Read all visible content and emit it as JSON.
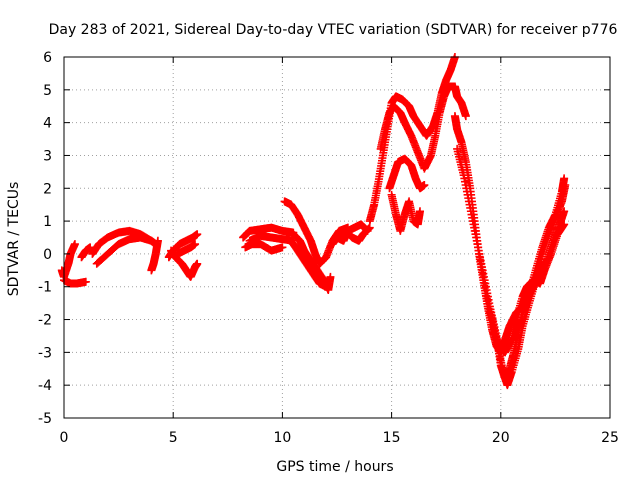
{
  "chart_data": {
    "type": "scatter",
    "title": "Day 283 of 2021, Sidereal Day-to-day VTEC variation (SDTVAR) for receiver p776",
    "xlabel": "GPS time / hours",
    "ylabel": "SDTVAR / TECUs",
    "xlim": [
      0,
      25
    ],
    "ylim": [
      -5,
      6
    ],
    "xticks": [
      0,
      5,
      10,
      15,
      20,
      25
    ],
    "yticks": [
      -5,
      -4,
      -3,
      -2,
      -1,
      0,
      1,
      2,
      3,
      4,
      5,
      6
    ],
    "grid": true,
    "marker": "+",
    "series": [
      {
        "name": "SDTVAR",
        "color": "#ff0000",
        "segments": [
          [
            [
              -0.1,
              -0.5
            ],
            [
              0.0,
              -0.7
            ],
            [
              0.2,
              -0.3
            ],
            [
              0.3,
              0.0
            ],
            [
              0.5,
              0.3
            ]
          ],
          [
            [
              0.0,
              -0.8
            ],
            [
              0.3,
              -0.9
            ],
            [
              0.6,
              -0.9
            ],
            [
              1.0,
              -0.85
            ]
          ],
          [
            [
              0.8,
              -0.1
            ],
            [
              1.0,
              0.1
            ],
            [
              1.2,
              0.2
            ]
          ],
          [
            [
              1.3,
              0.0
            ],
            [
              1.6,
              0.3
            ],
            [
              2.0,
              0.5
            ],
            [
              2.5,
              0.65
            ],
            [
              3.0,
              0.7
            ],
            [
              3.5,
              0.6
            ],
            [
              4.0,
              0.4
            ],
            [
              4.2,
              0.3
            ]
          ],
          [
            [
              1.5,
              -0.3
            ],
            [
              2.0,
              0.0
            ],
            [
              2.5,
              0.3
            ],
            [
              3.0,
              0.45
            ],
            [
              3.5,
              0.5
            ],
            [
              4.0,
              0.4
            ]
          ],
          [
            [
              4.0,
              -0.5
            ],
            [
              4.1,
              -0.3
            ],
            [
              4.2,
              0.0
            ],
            [
              4.3,
              0.4
            ]
          ],
          [
            [
              4.8,
              -0.1
            ],
            [
              5.0,
              0.1
            ],
            [
              5.3,
              0.3
            ],
            [
              5.6,
              0.4
            ],
            [
              5.9,
              0.5
            ],
            [
              6.1,
              0.6
            ]
          ],
          [
            [
              4.9,
              0.1
            ],
            [
              5.1,
              -0.1
            ],
            [
              5.4,
              -0.3
            ],
            [
              5.6,
              -0.5
            ],
            [
              5.8,
              -0.7
            ],
            [
              6.0,
              -0.4
            ],
            [
              6.1,
              -0.3
            ]
          ],
          [
            [
              5.2,
              0.0
            ],
            [
              5.5,
              0.1
            ],
            [
              5.8,
              0.2
            ],
            [
              6.0,
              0.3
            ]
          ],
          [
            [
              8.2,
              0.5
            ],
            [
              8.5,
              0.7
            ],
            [
              9.0,
              0.75
            ],
            [
              9.5,
              0.8
            ],
            [
              10.0,
              0.7
            ],
            [
              10.5,
              0.65
            ]
          ],
          [
            [
              8.3,
              0.2
            ],
            [
              8.6,
              0.3
            ],
            [
              9.0,
              0.3
            ],
            [
              9.5,
              0.1
            ],
            [
              10.0,
              0.2
            ]
          ],
          [
            [
              8.5,
              0.4
            ],
            [
              9.0,
              0.55
            ],
            [
              9.5,
              0.5
            ],
            [
              10.0,
              0.45
            ],
            [
              10.5,
              0.4
            ]
          ],
          [
            [
              10.1,
              1.6
            ],
            [
              10.4,
              1.5
            ],
            [
              10.7,
              1.2
            ],
            [
              11.0,
              0.8
            ],
            [
              11.3,
              0.4
            ],
            [
              11.5,
              0.0
            ],
            [
              11.7,
              -0.3
            ],
            [
              12.0,
              -0.1
            ],
            [
              12.3,
              0.4
            ],
            [
              12.6,
              0.7
            ],
            [
              13.0,
              0.8
            ]
          ],
          [
            [
              10.5,
              0.6
            ],
            [
              10.8,
              0.4
            ],
            [
              11.0,
              0.1
            ],
            [
              11.3,
              -0.2
            ],
            [
              11.6,
              -0.5
            ],
            [
              11.9,
              -0.8
            ],
            [
              12.1,
              -1.1
            ],
            [
              12.2,
              -0.7
            ]
          ],
          [
            [
              10.2,
              0.5
            ],
            [
              10.5,
              0.3
            ],
            [
              10.8,
              0.0
            ],
            [
              11.1,
              -0.3
            ],
            [
              11.4,
              -0.6
            ],
            [
              11.7,
              -0.9
            ],
            [
              12.0,
              -1.0
            ]
          ],
          [
            [
              12.3,
              0.3
            ],
            [
              12.6,
              0.6
            ],
            [
              12.9,
              0.7
            ],
            [
              13.2,
              0.5
            ],
            [
              13.5,
              0.4
            ],
            [
              13.7,
              0.6
            ],
            [
              14.0,
              0.8
            ]
          ],
          [
            [
              12.5,
              0.5
            ],
            [
              12.8,
              0.4
            ],
            [
              13.0,
              0.7
            ],
            [
              13.3,
              0.8
            ],
            [
              13.6,
              0.9
            ],
            [
              13.9,
              0.7
            ]
          ],
          [
            [
              14.0,
              1.0
            ],
            [
              14.2,
              1.5
            ],
            [
              14.4,
              2.2
            ],
            [
              14.6,
              3.0
            ],
            [
              14.8,
              3.8
            ],
            [
              15.0,
              4.6
            ],
            [
              15.2,
              4.8
            ],
            [
              15.5,
              4.7
            ],
            [
              15.8,
              4.5
            ],
            [
              16.0,
              4.2
            ],
            [
              16.3,
              3.9
            ],
            [
              16.6,
              3.6
            ],
            [
              16.9,
              3.9
            ],
            [
              17.1,
              4.3
            ],
            [
              17.3,
              4.9
            ],
            [
              17.5,
              5.3
            ],
            [
              17.7,
              5.6
            ],
            [
              17.9,
              6.0
            ]
          ],
          [
            [
              14.5,
              3.2
            ],
            [
              14.7,
              3.8
            ],
            [
              14.9,
              4.3
            ],
            [
              15.1,
              4.5
            ],
            [
              15.4,
              4.3
            ],
            [
              15.6,
              4.0
            ],
            [
              15.9,
              3.6
            ],
            [
              16.2,
              3.1
            ],
            [
              16.5,
              2.6
            ],
            [
              16.8,
              3.0
            ],
            [
              17.0,
              3.6
            ],
            [
              17.2,
              4.3
            ],
            [
              17.4,
              4.8
            ],
            [
              17.6,
              5.1
            ],
            [
              17.9,
              5.1
            ],
            [
              18.0,
              4.8
            ],
            [
              18.2,
              4.6
            ],
            [
              18.4,
              4.2
            ]
          ],
          [
            [
              14.9,
              2.0
            ],
            [
              15.1,
              2.4
            ],
            [
              15.3,
              2.8
            ],
            [
              15.6,
              2.9
            ],
            [
              15.9,
              2.7
            ],
            [
              16.1,
              2.3
            ],
            [
              16.3,
              2.0
            ],
            [
              16.5,
              2.1
            ]
          ],
          [
            [
              15.0,
              1.8
            ],
            [
              15.2,
              1.2
            ],
            [
              15.4,
              0.7
            ],
            [
              15.6,
              1.2
            ],
            [
              15.8,
              1.6
            ],
            [
              16.0,
              1.0
            ],
            [
              16.2,
              0.9
            ],
            [
              16.3,
              1.3
            ]
          ],
          [
            [
              17.9,
              4.2
            ],
            [
              18.0,
              3.8
            ],
            [
              18.2,
              3.4
            ],
            [
              18.4,
              2.8
            ],
            [
              18.6,
              2.0
            ],
            [
              18.8,
              1.0
            ],
            [
              19.0,
              0.0
            ],
            [
              19.2,
              -0.8
            ],
            [
              19.4,
              -1.6
            ],
            [
              19.6,
              -2.3
            ],
            [
              19.8,
              -2.8
            ],
            [
              20.0,
              -3.0
            ],
            [
              20.2,
              -2.6
            ],
            [
              20.4,
              -2.2
            ],
            [
              20.7,
              -1.8
            ],
            [
              21.0,
              -1.6
            ],
            [
              21.3,
              -1.2
            ],
            [
              21.6,
              -0.5
            ],
            [
              21.9,
              0.2
            ],
            [
              22.2,
              0.8
            ],
            [
              22.5,
              1.2
            ],
            [
              22.8,
              1.9
            ],
            [
              22.9,
              2.3
            ]
          ],
          [
            [
              18.0,
              3.2
            ],
            [
              18.3,
              2.4
            ],
            [
              18.6,
              1.4
            ],
            [
              18.9,
              0.4
            ],
            [
              19.2,
              -0.6
            ],
            [
              19.5,
              -1.6
            ],
            [
              19.8,
              -2.5
            ],
            [
              20.0,
              -3.4
            ],
            [
              20.2,
              -3.8
            ],
            [
              20.4,
              -3.5
            ],
            [
              20.6,
              -3.0
            ],
            [
              20.8,
              -2.4
            ],
            [
              21.0,
              -1.8
            ],
            [
              21.2,
              -1.4
            ],
            [
              21.5,
              -1.0
            ],
            [
              21.8,
              -0.6
            ],
            [
              22.1,
              -0.2
            ],
            [
              22.4,
              0.4
            ],
            [
              22.7,
              0.9
            ],
            [
              22.9,
              1.3
            ]
          ],
          [
            [
              19.3,
              -1.2
            ],
            [
              19.6,
              -2.0
            ],
            [
              19.9,
              -2.9
            ],
            [
              20.1,
              -3.6
            ],
            [
              20.3,
              -4.0
            ],
            [
              20.5,
              -3.6
            ],
            [
              20.8,
              -2.9
            ],
            [
              21.0,
              -2.2
            ],
            [
              21.3,
              -1.5
            ],
            [
              21.6,
              -0.8
            ],
            [
              21.9,
              0.0
            ],
            [
              22.2,
              0.6
            ],
            [
              22.5,
              1.1
            ],
            [
              22.8,
              1.6
            ],
            [
              22.95,
              2.1
            ]
          ],
          [
            [
              19.8,
              -2.6
            ],
            [
              20.0,
              -2.9
            ],
            [
              20.2,
              -3.0
            ],
            [
              20.5,
              -2.6
            ],
            [
              20.7,
              -2.0
            ],
            [
              21.0,
              -1.3
            ],
            [
              21.2,
              -1.0
            ],
            [
              21.5,
              -0.8
            ],
            [
              21.8,
              -0.9
            ],
            [
              22.0,
              -0.5
            ],
            [
              22.3,
              0.0
            ],
            [
              22.6,
              0.6
            ],
            [
              22.9,
              0.9
            ]
          ]
        ]
      }
    ]
  }
}
